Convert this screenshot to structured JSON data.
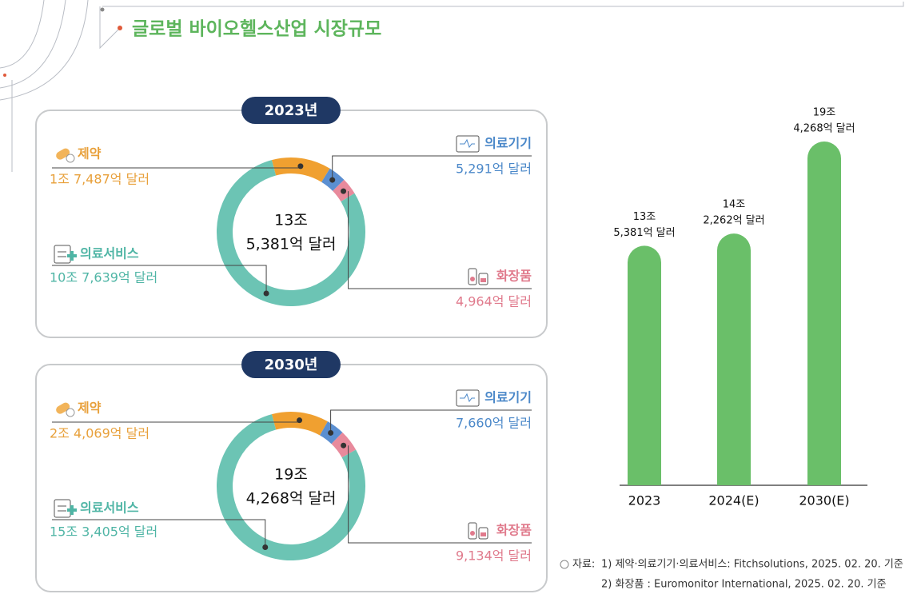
{
  "header": {
    "title": "글로벌 바이오헬스산업 시장규모"
  },
  "chart_data": [
    {
      "type": "donut",
      "title": "2023년",
      "categories": [
        "제약",
        "의료기기",
        "화장품",
        "의료서비스"
      ],
      "values": [
        17487,
        5291,
        4964,
        107639
      ],
      "value_labels": [
        "1조 7,487억 달러",
        "5,291억 달러",
        "4,964억 달러",
        "10조 7,639억 달러"
      ],
      "colors": [
        "#f0a030",
        "#5b8fd1",
        "#e88a9c",
        "#6cc4b4"
      ],
      "total": 135381,
      "total_label": [
        "13조",
        "5,381억 달러"
      ]
    },
    {
      "type": "donut",
      "title": "2030년",
      "categories": [
        "제약",
        "의료기기",
        "화장품",
        "의료서비스"
      ],
      "values": [
        24069,
        7660,
        9134,
        153405
      ],
      "value_labels": [
        "2조 4,069억 달러",
        "7,660억 달러",
        "9,134억 달러",
        "15조 3,405억 달러"
      ],
      "colors": [
        "#f0a030",
        "#5b8fd1",
        "#e88a9c",
        "#6cc4b4"
      ],
      "total": 194268,
      "total_label": [
        "19조",
        "4,268억 달러"
      ]
    },
    {
      "type": "bar",
      "categories": [
        "2023",
        "2024(E)",
        "2030(E)"
      ],
      "values": [
        135381,
        142262,
        194268
      ],
      "value_labels": [
        [
          "13조",
          "5,381억 달러"
        ],
        [
          "14조",
          "2,262억 달러"
        ],
        [
          "19조",
          "4,268억 달러"
        ]
      ],
      "color": "#6abf69"
    }
  ],
  "source": {
    "label": "자료:",
    "lines": [
      "1) 제약·의료기기·의료서비스: Fitchsolutions, 2025. 02. 20. 기준",
      "2) 화장품 : Euromonitor International, 2025. 02. 20. 기준"
    ]
  }
}
